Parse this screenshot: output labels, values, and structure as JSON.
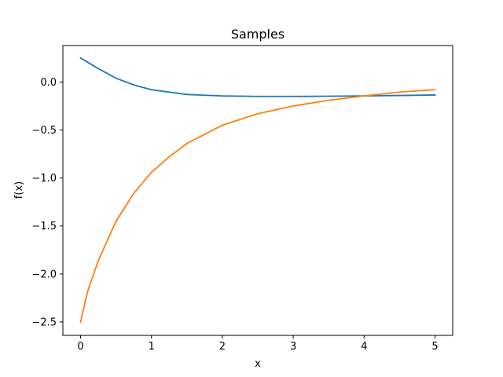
{
  "chart_data": {
    "type": "line",
    "title": "Samples",
    "xlabel": "x",
    "ylabel": "f(x)",
    "xlim": [
      -0.25,
      5.25
    ],
    "ylim": [
      -2.64,
      0.38
    ],
    "x_ticks": [
      0,
      1,
      2,
      3,
      4,
      5
    ],
    "x_tick_labels": [
      "0",
      "1",
      "2",
      "3",
      "4",
      "5"
    ],
    "y_ticks": [
      0.0,
      -0.5,
      -1.0,
      -1.5,
      -2.0,
      -2.5
    ],
    "y_tick_labels": [
      "0.0",
      "−0.5",
      "−1.0",
      "−1.5",
      "−2.0",
      "−2.5"
    ],
    "grid": false,
    "legend": "none",
    "series": [
      {
        "color": "#1f77b4",
        "x": [
          0,
          0.25,
          0.5,
          0.75,
          1.0,
          1.5,
          2.0,
          2.5,
          3.0,
          3.5,
          4.0,
          4.5,
          5.0
        ],
        "y": [
          0.25,
          0.14,
          0.04,
          -0.03,
          -0.08,
          -0.13,
          -0.145,
          -0.15,
          -0.15,
          -0.148,
          -0.145,
          -0.14,
          -0.135
        ]
      },
      {
        "color": "#ff7f0e",
        "x": [
          0,
          0.1,
          0.25,
          0.5,
          0.75,
          1.0,
          1.25,
          1.5,
          2.0,
          2.5,
          3.0,
          3.5,
          4.0,
          4.5,
          5.0
        ],
        "y": [
          -2.5,
          -2.18,
          -1.86,
          -1.45,
          -1.16,
          -0.94,
          -0.78,
          -0.64,
          -0.45,
          -0.33,
          -0.25,
          -0.19,
          -0.145,
          -0.105,
          -0.08
        ]
      }
    ]
  }
}
